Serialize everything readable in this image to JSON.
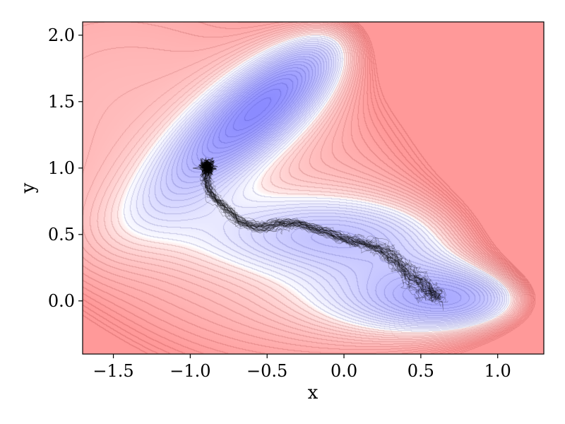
{
  "chart_data": {
    "type": "contour",
    "title": "",
    "xlabel": "x",
    "ylabel": "y",
    "xlim": [
      -1.7,
      1.3
    ],
    "ylim": [
      -0.4,
      2.1
    ],
    "xticks": [
      -1.5,
      -1.0,
      -0.5,
      0.0,
      0.5,
      1.0
    ],
    "xtick_labels": [
      "−1.5",
      "−1.0",
      "−0.5",
      "0.0",
      "0.5",
      "1.0"
    ],
    "yticks": [
      0.0,
      0.5,
      1.0,
      1.5,
      2.0
    ],
    "ytick_labels": [
      "0.0",
      "0.5",
      "1.0",
      "1.5",
      "2.0"
    ],
    "grid": false,
    "colormap": {
      "low": "#8888ff",
      "mid": "#ffffff",
      "high": "#ff9999"
    },
    "minima": [
      {
        "x": -0.55,
        "y": 1.45
      },
      {
        "x": 0.62,
        "y": 0.03
      },
      {
        "x": -0.05,
        "y": 0.47
      }
    ],
    "trajectory_color": "#000000",
    "trajectory_mean_path": [
      [
        -0.88,
        1.02
      ],
      [
        -0.9,
        0.92
      ],
      [
        -0.87,
        0.8
      ],
      [
        -0.78,
        0.7
      ],
      [
        -0.68,
        0.6
      ],
      [
        -0.55,
        0.55
      ],
      [
        -0.42,
        0.58
      ],
      [
        -0.3,
        0.58
      ],
      [
        -0.15,
        0.53
      ],
      [
        0.0,
        0.47
      ],
      [
        0.12,
        0.43
      ],
      [
        0.25,
        0.38
      ],
      [
        0.35,
        0.3
      ],
      [
        0.45,
        0.18
      ],
      [
        0.55,
        0.08
      ],
      [
        0.62,
        0.03
      ]
    ],
    "trajectory_cluster": {
      "x": -0.89,
      "y": 1.01
    }
  }
}
